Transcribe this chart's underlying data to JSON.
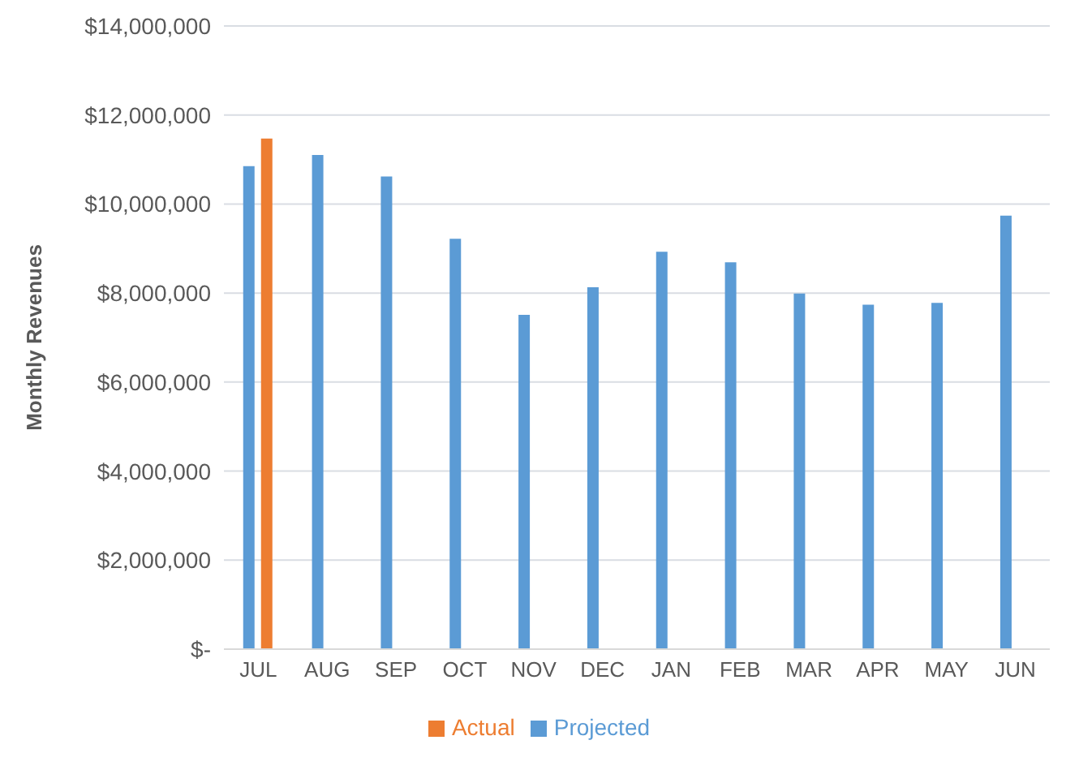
{
  "chart_data": {
    "type": "bar",
    "ylabel": "Monthly Revenues",
    "categories": [
      "JUL",
      "AUG",
      "SEP",
      "OCT",
      "NOV",
      "DEC",
      "JAN",
      "FEB",
      "MAR",
      "APR",
      "MAY",
      "JUN"
    ],
    "series": [
      {
        "name": "Projected",
        "color": "#5b9bd5",
        "values": [
          10850000,
          11100000,
          10620000,
          9220000,
          7510000,
          8130000,
          8930000,
          8690000,
          7990000,
          7740000,
          7780000,
          9740000
        ]
      },
      {
        "name": "Actual",
        "color": "#ed7d31",
        "values": [
          11470000,
          null,
          null,
          null,
          null,
          null,
          null,
          null,
          null,
          null,
          null,
          null
        ]
      }
    ],
    "ylim": [
      0,
      14000000
    ],
    "yticks": [
      {
        "value": 0,
        "label": "$-"
      },
      {
        "value": 2000000,
        "label": "$2,000,000"
      },
      {
        "value": 4000000,
        "label": "$4,000,000"
      },
      {
        "value": 6000000,
        "label": "$6,000,000"
      },
      {
        "value": 8000000,
        "label": "$8,000,000"
      },
      {
        "value": 10000000,
        "label": "$10,000,000"
      },
      {
        "value": 12000000,
        "label": "$12,000,000"
      },
      {
        "value": 14000000,
        "label": "$14,000,000"
      }
    ],
    "grid": "y",
    "legend": "bottom"
  }
}
